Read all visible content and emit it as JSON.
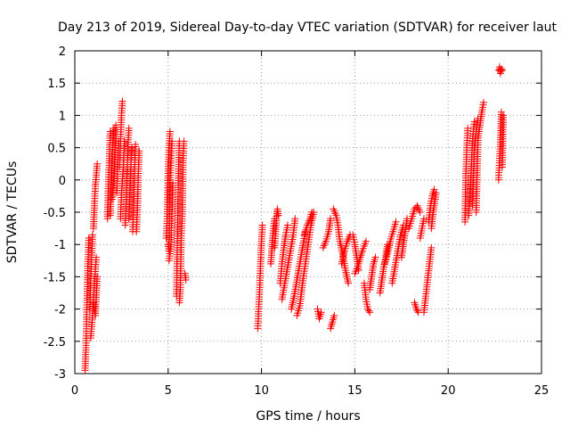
{
  "chart_data": {
    "type": "scatter",
    "title": "Day 213 of 2019, Sidereal Day-to-day VTEC variation (SDTVAR) for receiver laut",
    "xlabel": "GPS time / hours",
    "ylabel": "SDTVAR / TECUs",
    "xlim": [
      0,
      25
    ],
    "ylim": [
      -3,
      2
    ],
    "xticks": [
      0,
      5,
      10,
      15,
      20,
      25
    ],
    "yticks": [
      -3,
      -2.5,
      -2,
      -1.5,
      -1,
      -0.5,
      0,
      0.5,
      1,
      1.5,
      2
    ],
    "grid": true,
    "marker": "+",
    "marker_color": "#ff0000",
    "series": [
      {
        "name": "SDTVAR",
        "segments": [
          [
            [
              0.55,
              -2.95
            ],
            [
              0.6,
              -2.6
            ],
            [
              0.65,
              -1.9
            ],
            [
              0.7,
              -1.3
            ],
            [
              0.75,
              -0.9
            ]
          ],
          [
            [
              0.8,
              -2.0
            ],
            [
              0.85,
              -1.6
            ],
            [
              0.9,
              -1.2
            ],
            [
              0.95,
              -0.85
            ]
          ],
          [
            [
              0.85,
              -2.45
            ],
            [
              0.95,
              -2.1
            ],
            [
              1.05,
              -1.6
            ],
            [
              1.15,
              -1.2
            ]
          ],
          [
            [
              1.0,
              -0.75
            ],
            [
              1.05,
              -0.4
            ],
            [
              1.1,
              -0.1
            ],
            [
              1.2,
              0.25
            ]
          ],
          [
            [
              1.0,
              -1.9
            ],
            [
              1.1,
              -2.1
            ],
            [
              1.2,
              -1.5
            ]
          ],
          [
            [
              1.75,
              -0.6
            ],
            [
              1.8,
              -0.1
            ],
            [
              1.85,
              0.3
            ],
            [
              1.9,
              0.75
            ]
          ],
          [
            [
              1.9,
              -0.55
            ],
            [
              1.95,
              -0.1
            ],
            [
              2.0,
              0.4
            ],
            [
              2.1,
              0.8
            ]
          ],
          [
            [
              2.0,
              -0.3
            ],
            [
              2.1,
              0.1
            ],
            [
              2.15,
              0.5
            ],
            [
              2.2,
              0.85
            ]
          ],
          [
            [
              2.25,
              -0.2
            ],
            [
              2.3,
              0.2
            ],
            [
              2.35,
              0.6
            ]
          ],
          [
            [
              2.4,
              0.2
            ],
            [
              2.45,
              0.6
            ],
            [
              2.5,
              1.0
            ],
            [
              2.55,
              1.22
            ]
          ],
          [
            [
              2.45,
              -0.6
            ],
            [
              2.5,
              -0.2
            ],
            [
              2.6,
              0.2
            ],
            [
              2.65,
              0.6
            ]
          ],
          [
            [
              2.7,
              -0.7
            ],
            [
              2.75,
              -0.3
            ],
            [
              2.8,
              0.1
            ],
            [
              2.85,
              0.55
            ],
            [
              2.9,
              0.8
            ]
          ],
          [
            [
              2.9,
              -0.6
            ],
            [
              2.95,
              -0.2
            ],
            [
              3.0,
              0.2
            ],
            [
              3.05,
              0.5
            ]
          ],
          [
            [
              3.1,
              -0.8
            ],
            [
              3.15,
              -0.4
            ],
            [
              3.2,
              0.1
            ],
            [
              3.25,
              0.55
            ]
          ],
          [
            [
              3.3,
              -0.8
            ],
            [
              3.35,
              -0.5
            ],
            [
              3.4,
              0.1
            ],
            [
              3.45,
              0.45
            ]
          ],
          [
            [
              4.9,
              -0.9
            ],
            [
              4.95,
              -0.6
            ],
            [
              5.0,
              0.1
            ],
            [
              5.05,
              0.5
            ],
            [
              5.1,
              0.75
            ]
          ],
          [
            [
              5.0,
              -1.0
            ],
            [
              5.05,
              -1.1
            ],
            [
              5.1,
              0.0
            ],
            [
              5.15,
              0.3
            ],
            [
              5.2,
              0.6
            ]
          ],
          [
            [
              5.05,
              -1.25
            ],
            [
              5.15,
              -1.0
            ],
            [
              5.25,
              -0.05
            ]
          ],
          [
            [
              5.45,
              -1.8
            ],
            [
              5.5,
              -0.8
            ],
            [
              5.55,
              0.1
            ],
            [
              5.6,
              0.6
            ]
          ],
          [
            [
              5.6,
              -1.9
            ],
            [
              5.65,
              -1.7
            ],
            [
              5.7,
              -0.9
            ],
            [
              5.75,
              -0.6
            ],
            [
              5.8,
              0.3
            ],
            [
              5.85,
              0.6
            ]
          ],
          [
            [
              5.9,
              -1.45
            ],
            [
              5.95,
              -1.55
            ]
          ],
          [
            [
              9.8,
              -2.3
            ],
            [
              9.85,
              -2.0
            ],
            [
              9.9,
              -1.7
            ],
            [
              9.95,
              -1.3
            ],
            [
              10.0,
              -0.95
            ],
            [
              10.05,
              -0.7
            ]
          ],
          [
            [
              10.5,
              -1.3
            ],
            [
              10.55,
              -1.1
            ],
            [
              10.6,
              -0.9
            ],
            [
              10.65,
              -0.75
            ],
            [
              10.7,
              -0.6
            ]
          ],
          [
            [
              10.7,
              -1.05
            ],
            [
              10.75,
              -0.8
            ],
            [
              10.8,
              -0.6
            ],
            [
              10.85,
              -0.45
            ],
            [
              10.9,
              -0.55
            ]
          ],
          [
            [
              11.0,
              -1.6
            ],
            [
              11.1,
              -1.3
            ],
            [
              11.2,
              -1.05
            ],
            [
              11.3,
              -0.85
            ],
            [
              11.4,
              -0.7
            ]
          ],
          [
            [
              11.1,
              -1.85
            ],
            [
              11.25,
              -1.6
            ],
            [
              11.4,
              -1.35
            ],
            [
              11.55,
              -1.1
            ],
            [
              11.7,
              -0.85
            ],
            [
              11.8,
              -0.6
            ]
          ],
          [
            [
              11.6,
              -2.0
            ],
            [
              11.75,
              -1.8
            ],
            [
              11.9,
              -1.55
            ],
            [
              12.05,
              -1.3
            ],
            [
              12.2,
              -1.05
            ],
            [
              12.35,
              -0.8
            ]
          ],
          [
            [
              11.9,
              -2.1
            ],
            [
              12.05,
              -1.95
            ],
            [
              12.2,
              -1.6
            ],
            [
              12.35,
              -1.3
            ],
            [
              12.5,
              -1.0
            ],
            [
              12.65,
              -0.7
            ],
            [
              12.8,
              -0.5
            ]
          ],
          [
            [
              12.3,
              -0.85
            ],
            [
              12.45,
              -0.7
            ],
            [
              12.6,
              -0.6
            ],
            [
              12.7,
              -0.5
            ]
          ],
          [
            [
              13.0,
              -2.0
            ],
            [
              13.1,
              -2.15
            ],
            [
              13.2,
              -2.05
            ]
          ],
          [
            [
              13.3,
              -1.05
            ],
            [
              13.45,
              -0.95
            ],
            [
              13.6,
              -0.8
            ],
            [
              13.7,
              -0.6
            ]
          ],
          [
            [
              13.7,
              -2.3
            ],
            [
              13.8,
              -2.2
            ],
            [
              13.9,
              -2.1
            ]
          ],
          [
            [
              13.85,
              -0.45
            ],
            [
              14.0,
              -0.55
            ],
            [
              14.1,
              -0.7
            ],
            [
              14.2,
              -0.95
            ],
            [
              14.35,
              -1.15
            ],
            [
              14.5,
              -1.4
            ],
            [
              14.65,
              -1.6
            ]
          ],
          [
            [
              14.3,
              -1.3
            ],
            [
              14.45,
              -1.1
            ],
            [
              14.6,
              -0.95
            ],
            [
              14.75,
              -0.85
            ]
          ],
          [
            [
              14.9,
              -0.85
            ],
            [
              15.0,
              -1.0
            ],
            [
              15.1,
              -1.2
            ],
            [
              15.2,
              -1.4
            ]
          ],
          [
            [
              15.0,
              -1.45
            ],
            [
              15.2,
              -1.3
            ],
            [
              15.4,
              -1.1
            ],
            [
              15.6,
              -0.95
            ]
          ],
          [
            [
              15.5,
              -1.6
            ],
            [
              15.6,
              -1.85
            ],
            [
              15.7,
              -2.0
            ],
            [
              15.8,
              -2.05
            ]
          ],
          [
            [
              15.8,
              -1.7
            ],
            [
              15.9,
              -1.5
            ],
            [
              16.0,
              -1.3
            ],
            [
              16.1,
              -1.2
            ]
          ],
          [
            [
              16.35,
              -1.75
            ],
            [
              16.45,
              -1.55
            ],
            [
              16.55,
              -1.35
            ],
            [
              16.65,
              -1.2
            ],
            [
              16.75,
              -1.0
            ]
          ],
          [
            [
              16.6,
              -1.3
            ],
            [
              16.75,
              -1.15
            ],
            [
              16.9,
              -0.95
            ],
            [
              17.05,
              -0.8
            ],
            [
              17.2,
              -0.65
            ]
          ],
          [
            [
              17.0,
              -1.6
            ],
            [
              17.15,
              -1.35
            ],
            [
              17.3,
              -1.1
            ],
            [
              17.45,
              -0.85
            ],
            [
              17.6,
              -0.7
            ]
          ],
          [
            [
              17.5,
              -1.2
            ],
            [
              17.6,
              -1.0
            ],
            [
              17.7,
              -0.8
            ],
            [
              17.8,
              -0.6
            ]
          ],
          [
            [
              17.9,
              -0.75
            ],
            [
              18.05,
              -0.6
            ],
            [
              18.2,
              -0.45
            ],
            [
              18.35,
              -0.4
            ],
            [
              18.5,
              -0.5
            ]
          ],
          [
            [
              18.2,
              -1.9
            ],
            [
              18.3,
              -2.0
            ],
            [
              18.4,
              -2.05
            ]
          ],
          [
            [
              18.5,
              -0.9
            ],
            [
              18.6,
              -0.75
            ],
            [
              18.7,
              -0.6
            ]
          ],
          [
            [
              18.7,
              -2.05
            ],
            [
              18.8,
              -1.8
            ],
            [
              18.9,
              -1.55
            ],
            [
              19.0,
              -1.3
            ],
            [
              19.1,
              -1.05
            ]
          ],
          [
            [
              18.95,
              -0.65
            ],
            [
              19.05,
              -0.4
            ],
            [
              19.15,
              -0.25
            ],
            [
              19.25,
              -0.15
            ]
          ],
          [
            [
              19.1,
              -0.75
            ],
            [
              19.2,
              -0.5
            ],
            [
              19.3,
              -0.3
            ],
            [
              19.35,
              -0.2
            ]
          ],
          [
            [
              20.9,
              -0.65
            ],
            [
              20.95,
              0.1
            ],
            [
              21.0,
              0.5
            ],
            [
              21.05,
              0.8
            ]
          ],
          [
            [
              21.1,
              -0.55
            ],
            [
              21.2,
              -0.1
            ],
            [
              21.3,
              0.6
            ],
            [
              21.4,
              0.9
            ]
          ],
          [
            [
              21.3,
              -0.4
            ],
            [
              21.4,
              0.5
            ],
            [
              21.5,
              0.75
            ],
            [
              21.6,
              0.95
            ]
          ],
          [
            [
              21.5,
              -0.5
            ],
            [
              21.6,
              0.65
            ],
            [
              21.7,
              0.85
            ],
            [
              21.8,
              1.05
            ],
            [
              21.9,
              1.2
            ]
          ],
          [
            [
              22.7,
              0.0
            ],
            [
              22.75,
              0.3
            ],
            [
              22.8,
              0.55
            ],
            [
              22.85,
              1.05
            ]
          ],
          [
            [
              22.7,
              1.7
            ],
            [
              22.75,
              1.75
            ],
            [
              22.8,
              1.65
            ],
            [
              22.85,
              1.72
            ],
            [
              22.9,
              1.7
            ]
          ],
          [
            [
              22.9,
              0.2
            ],
            [
              22.95,
              1.0
            ]
          ]
        ]
      }
    ]
  }
}
